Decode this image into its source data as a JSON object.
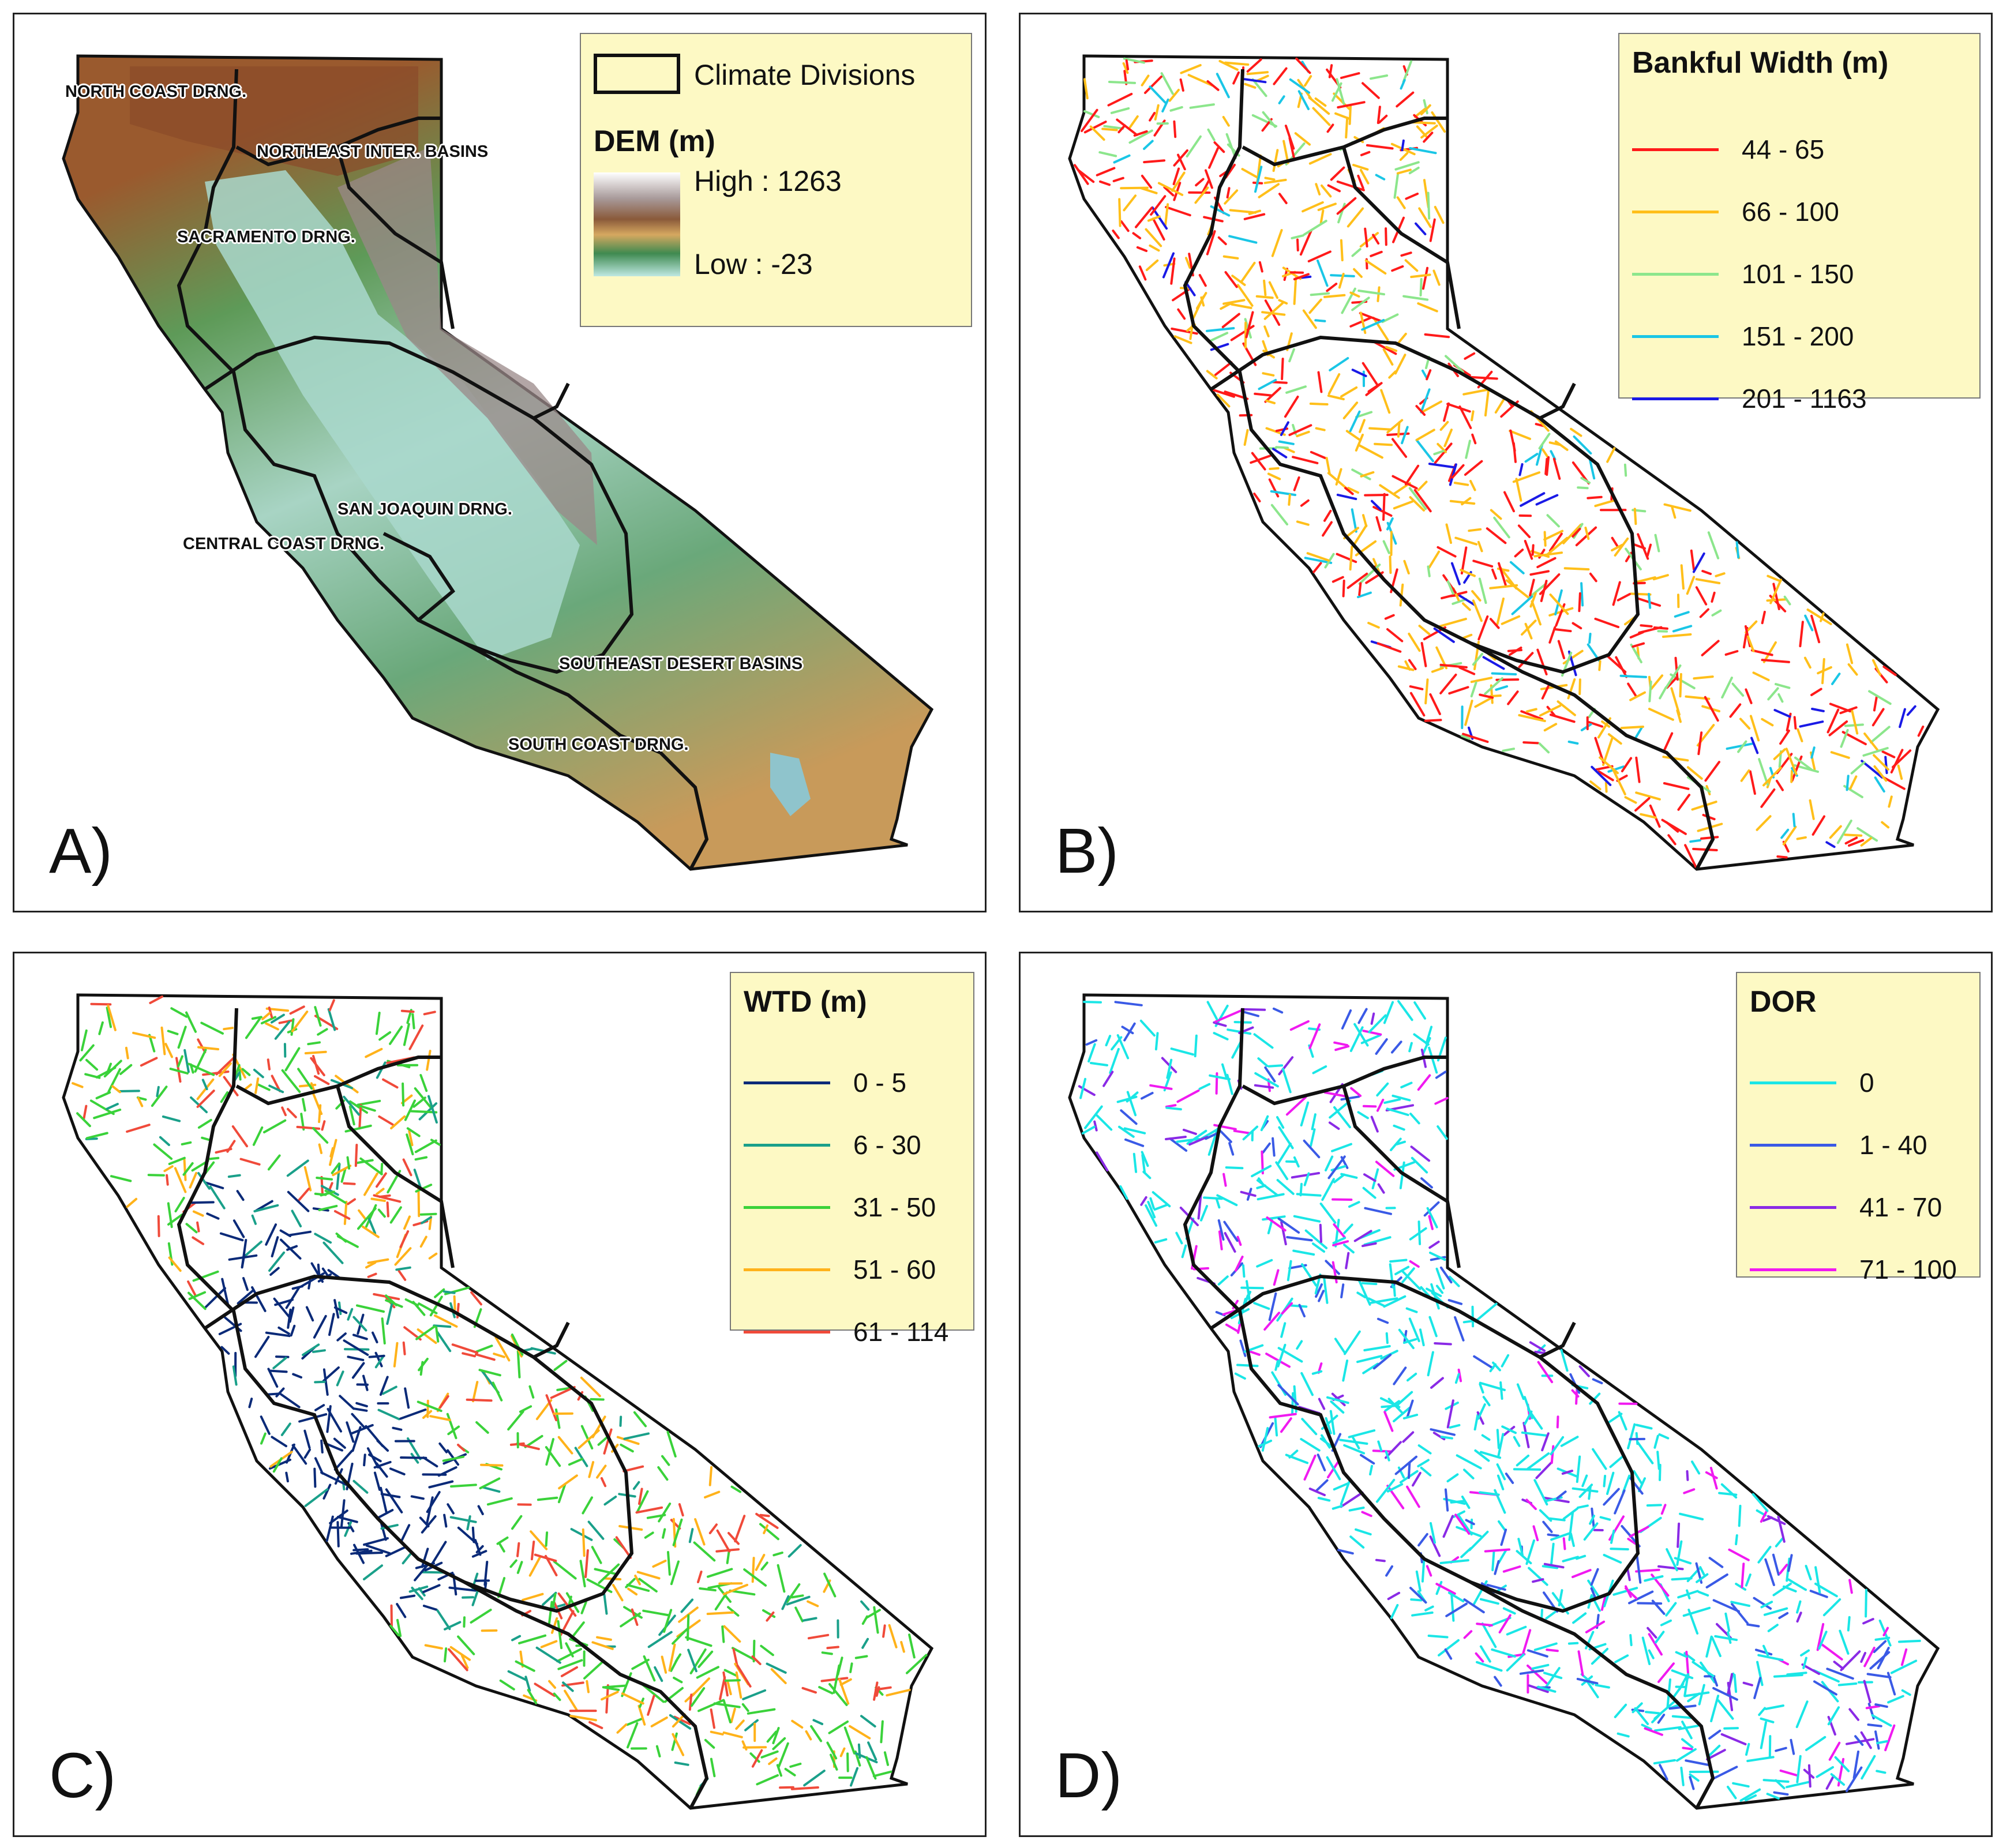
{
  "panel_a": {
    "letter": "A)",
    "legend": {
      "divisions_label": "Climate Divisions",
      "dem_title": "DEM (m)",
      "high_label": "High : 1263",
      "low_label": "Low : -23",
      "ramp_colors": [
        "#ffffff",
        "#a89a9a",
        "#8a5a3a",
        "#d6a860",
        "#3f8a50",
        "#bfe8e2"
      ]
    },
    "division_labels": [
      "NORTH COAST DRNG.",
      "NORTHEAST INTER. BASINS",
      "SACRAMENTO DRNG.",
      "SAN JOAQUIN DRNG.",
      "CENTRAL COAST DRNG.",
      "SOUTHEAST DESERT BASINS",
      "SOUTH COAST DRNG."
    ]
  },
  "panel_b": {
    "letter": "B)",
    "legend": {
      "title": "Bankful Width (m)",
      "classes": [
        {
          "label": "44 - 65",
          "color": "#ff1a1a"
        },
        {
          "label": "66 - 100",
          "color": "#ffbf1a"
        },
        {
          "label": "101 - 150",
          "color": "#8ce68c"
        },
        {
          "label": "151 - 200",
          "color": "#1ac6e6"
        },
        {
          "label": "201 - 1163",
          "color": "#1a1ae6"
        }
      ]
    }
  },
  "panel_c": {
    "letter": "C)",
    "legend": {
      "title": "WTD (m)",
      "classes": [
        {
          "label": "0 - 5",
          "color": "#0a2a78"
        },
        {
          "label": "6 - 30",
          "color": "#1aa08a"
        },
        {
          "label": "31 - 50",
          "color": "#3ad23a"
        },
        {
          "label": "51 - 60",
          "color": "#ffb21a"
        },
        {
          "label": "61 - 114",
          "color": "#f04a3a"
        }
      ]
    }
  },
  "panel_d": {
    "letter": "D)",
    "legend": {
      "title": "DOR",
      "classes": [
        {
          "label": "0",
          "color": "#1ae6e6"
        },
        {
          "label": "1 - 40",
          "color": "#3a5ae6"
        },
        {
          "label": "41 - 70",
          "color": "#8a2ae6"
        },
        {
          "label": "71 - 100",
          "color": "#f01af0"
        }
      ]
    }
  }
}
